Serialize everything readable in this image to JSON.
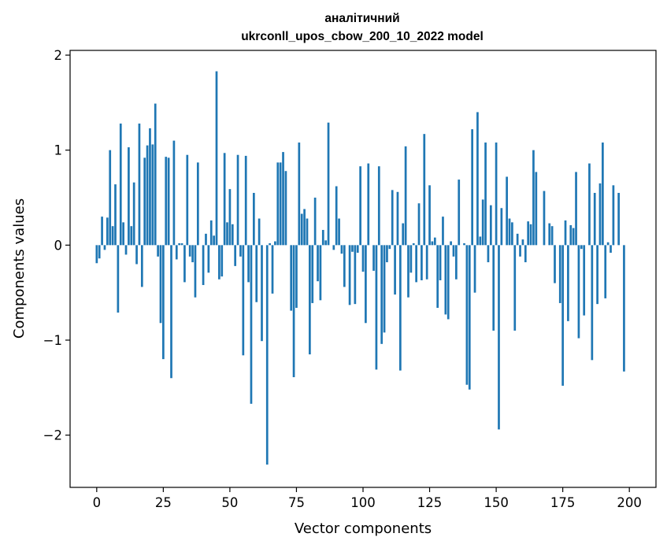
{
  "chart_data": {
    "type": "bar",
    "title": [
      "аналітичний",
      "ukrconll_upos_cbow_200_10_2022 model"
    ],
    "xlabel": "Vector components",
    "ylabel": "Components values",
    "xlim": [
      -10,
      210
    ],
    "ylim": [
      -2.55,
      2.05
    ],
    "xticks": [
      0,
      25,
      50,
      75,
      100,
      125,
      150,
      175,
      200
    ],
    "yticks": [
      2,
      1,
      0,
      -1,
      -2
    ],
    "ytick_labels": [
      "2",
      "1",
      "0",
      "−1",
      "−2"
    ],
    "bar_color": "#1f77b4",
    "values": [
      -0.19,
      -0.14,
      0.3,
      -0.05,
      0.29,
      1.0,
      0.2,
      0.64,
      -0.71,
      1.28,
      0.24,
      -0.1,
      1.03,
      0.2,
      0.66,
      -0.2,
      1.28,
      -0.44,
      0.92,
      1.05,
      1.23,
      1.06,
      1.49,
      -0.12,
      -0.82,
      -1.2,
      0.93,
      0.92,
      -1.4,
      1.1,
      -0.15,
      0.02,
      0.02,
      -0.39,
      0.95,
      -0.12,
      -0.18,
      -0.55,
      0.87,
      0.0,
      -0.42,
      0.12,
      -0.29,
      0.26,
      0.1,
      1.83,
      -0.36,
      -0.33,
      0.97,
      0.24,
      0.59,
      0.22,
      -0.22,
      0.95,
      -0.12,
      -1.16,
      0.94,
      -0.39,
      -1.67,
      0.55,
      -0.6,
      0.28,
      -1.01,
      0.0,
      -2.31,
      0.02,
      -0.51,
      0.04,
      0.87,
      0.87,
      0.98,
      0.78,
      0.0,
      -0.69,
      -1.39,
      -0.66,
      1.08,
      0.33,
      0.38,
      0.28,
      -1.15,
      -0.61,
      0.5,
      -0.38,
      -0.58,
      0.16,
      0.05,
      1.29,
      0.0,
      -0.05,
      0.62,
      0.28,
      -0.09,
      -0.44,
      0.0,
      -0.63,
      -0.07,
      -0.62,
      -0.08,
      0.83,
      -0.28,
      -0.82,
      0.86,
      0.0,
      -0.27,
      -1.31,
      0.83,
      -1.04,
      -0.92,
      -0.18,
      -0.04,
      0.58,
      -0.52,
      0.56,
      -1.32,
      0.23,
      1.04,
      -0.55,
      -0.29,
      0.02,
      -0.39,
      0.44,
      -0.37,
      1.17,
      -0.36,
      0.63,
      0.04,
      0.08,
      -0.66,
      -0.37,
      0.3,
      -0.73,
      -0.78,
      0.04,
      -0.12,
      -0.36,
      0.69,
      0.0,
      0.02,
      -1.47,
      -1.52,
      1.22,
      -0.5,
      1.4,
      0.09,
      0.48,
      1.08,
      -0.18,
      0.42,
      -0.9,
      1.08,
      -1.94,
      0.39,
      0.0,
      0.72,
      0.28,
      0.24,
      -0.9,
      0.12,
      -0.12,
      0.06,
      -0.18,
      0.25,
      0.22,
      1.0,
      0.77,
      0.0,
      0.0,
      0.57,
      0.0,
      0.23,
      0.2,
      -0.4,
      0.0,
      -0.61,
      -1.48,
      0.26,
      -0.8,
      0.21,
      0.18,
      0.77,
      -0.98,
      -0.04,
      -0.74,
      0.0,
      0.86,
      -1.21,
      0.55,
      -0.62,
      0.65,
      1.08,
      -0.56,
      0.03,
      -0.08,
      0.63,
      0.0,
      0.55,
      0.0,
      -1.33
    ]
  }
}
